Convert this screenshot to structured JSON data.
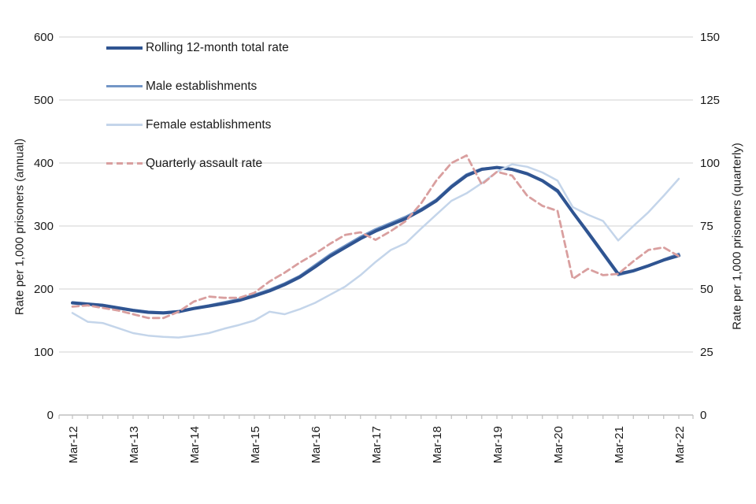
{
  "chart_data": {
    "type": "line",
    "title": "",
    "x_year_labels": [
      "Mar-12",
      "Mar-13",
      "Mar-14",
      "Mar-15",
      "Mar-16",
      "Mar-17",
      "Mar-18",
      "Mar-19",
      "Mar-20",
      "Mar-21",
      "Mar-22"
    ],
    "x_minor_ticks": "quarterly",
    "left_axis": {
      "label": "Rate per 1,000 prisoners (annual)",
      "ticks": [
        0,
        100,
        200,
        300,
        400,
        500,
        600
      ],
      "range": [
        0,
        600
      ]
    },
    "right_axis": {
      "label": "Rate per 1,000 prisoners (quarterly)",
      "ticks": [
        0,
        25,
        50,
        75,
        100,
        125,
        150
      ],
      "range": [
        0,
        150
      ]
    },
    "grid": "horizontal",
    "legend_position": "top-left-inside",
    "series": [
      {
        "name": "Rolling 12-month total rate",
        "axis": "left",
        "style": "solid",
        "color": "#2F5491",
        "values": [
          178,
          176,
          174,
          170,
          166,
          163,
          162,
          164,
          169,
          173,
          177,
          182,
          189,
          197,
          207,
          219,
          235,
          252,
          266,
          280,
          292,
          302,
          312,
          325,
          340,
          362,
          380,
          390,
          393,
          390,
          383,
          372,
          356,
          322,
          290,
          257,
          224,
          229,
          237,
          246,
          253
        ]
      },
      {
        "name": "Male establishments",
        "axis": "left",
        "style": "solid",
        "color": "#7396C6",
        "values": [
          179,
          177,
          175,
          171,
          167,
          164,
          163,
          165,
          170,
          174,
          179,
          184,
          191,
          199,
          209,
          221,
          238,
          255,
          269,
          283,
          295,
          305,
          315,
          327,
          342,
          364,
          382,
          391,
          393,
          389,
          382,
          371,
          354,
          321,
          288,
          255,
          222,
          228,
          236,
          247,
          256
        ]
      },
      {
        "name": "Female establishments",
        "axis": "left",
        "style": "solid",
        "color": "#C4D5EA",
        "values": [
          162,
          148,
          146,
          138,
          130,
          126,
          124,
          123,
          126,
          130,
          137,
          143,
          150,
          164,
          160,
          168,
          178,
          191,
          204,
          222,
          243,
          262,
          273,
          296,
          318,
          340,
          352,
          368,
          386,
          398,
          394,
          385,
          372,
          330,
          318,
          308,
          277,
          300,
          322,
          348,
          375
        ]
      },
      {
        "name": "Quarterly assault rate",
        "axis": "right",
        "style": "dashed",
        "color": "#D99F9F",
        "values": [
          43,
          43.5,
          42.5,
          41.5,
          40,
          38.5,
          38.5,
          41,
          45,
          47,
          46.5,
          46.5,
          48.5,
          53,
          56.5,
          60.5,
          64,
          68,
          71.5,
          72.5,
          69.5,
          73,
          77,
          84,
          93,
          100,
          103,
          91.5,
          96.5,
          95,
          87,
          83,
          81,
          54,
          58,
          55.5,
          56,
          61,
          65.5,
          66.5,
          63
        ]
      }
    ],
    "colors": {
      "gridline": "#D9D9D9",
      "axis_line": "#BFBFBF",
      "tick_text": "#1a1a1a"
    }
  }
}
